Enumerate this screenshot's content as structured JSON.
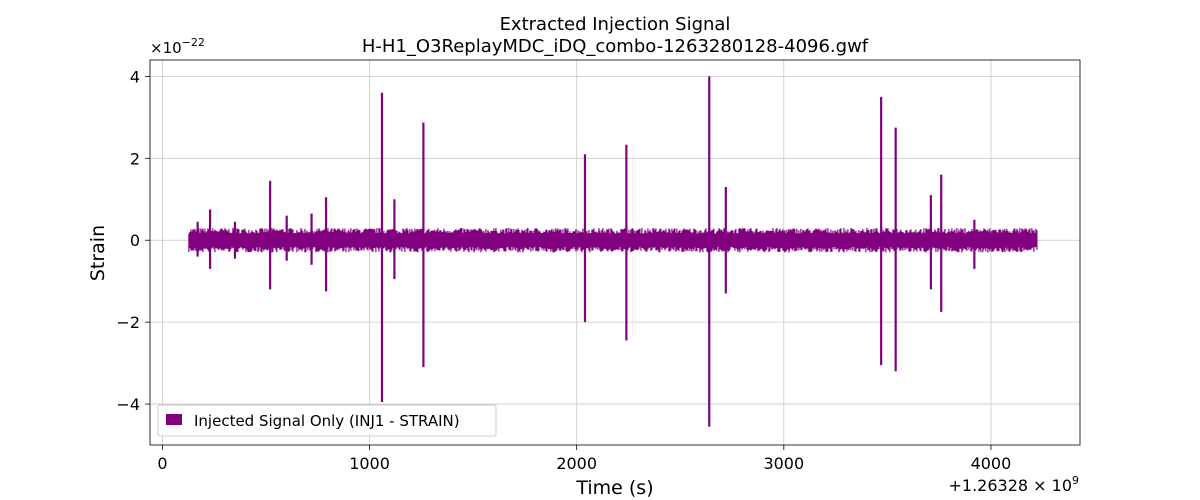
{
  "chart_data": {
    "type": "line",
    "title": "Extracted Injection Signal",
    "subtitle": "H-H1_O3ReplayMDC_iDQ_combo-1263280128-4096.gwf",
    "xlabel": "Time (s)",
    "ylabel": "Strain",
    "x_offset_label": "+1.26328",
    "x_offset_exp_label": "9",
    "y_scale_base": "10",
    "y_scale_exp_label": "−22",
    "xlim": [
      -60,
      4430
    ],
    "ylim": [
      -5.0,
      4.4
    ],
    "x_ticks": [
      0,
      1000,
      2000,
      3000,
      4000
    ],
    "x_tick_labels": [
      "0",
      "1000",
      "2000",
      "3000",
      "4000"
    ],
    "y_ticks": [
      -4,
      -2,
      0,
      2,
      4
    ],
    "y_tick_labels": [
      "−4",
      "−2",
      "0",
      "2",
      "4"
    ],
    "grid": true,
    "legend_position": "lower-left",
    "series": [
      {
        "name": "Injected Signal Only (INJ1 - STRAIN)",
        "color": "#800080",
        "x_range": [
          128,
          4224
        ],
        "baseline_amplitude": [
          -0.3,
          0.3
        ],
        "spikes": [
          {
            "x": 170,
            "y_max": 0.45,
            "y_min": -0.4
          },
          {
            "x": 230,
            "y_max": 0.75,
            "y_min": -0.7
          },
          {
            "x": 350,
            "y_max": 0.45,
            "y_min": -0.45
          },
          {
            "x": 520,
            "y_max": 1.45,
            "y_min": -1.2
          },
          {
            "x": 600,
            "y_max": 0.6,
            "y_min": -0.5
          },
          {
            "x": 720,
            "y_max": 0.65,
            "y_min": -0.6
          },
          {
            "x": 790,
            "y_max": 1.05,
            "y_min": -1.25
          },
          {
            "x": 1060,
            "y_max": 3.6,
            "y_min": -3.95
          },
          {
            "x": 1120,
            "y_max": 1.0,
            "y_min": -0.95
          },
          {
            "x": 1260,
            "y_max": 2.87,
            "y_min": -3.1
          },
          {
            "x": 2040,
            "y_max": 2.1,
            "y_min": -2.0
          },
          {
            "x": 2240,
            "y_max": 2.33,
            "y_min": -2.45
          },
          {
            "x": 2640,
            "y_max": 4.0,
            "y_min": -4.55
          },
          {
            "x": 2720,
            "y_max": 1.3,
            "y_min": -1.3
          },
          {
            "x": 3470,
            "y_max": 3.5,
            "y_min": -3.05
          },
          {
            "x": 3540,
            "y_max": 2.75,
            "y_min": -3.2
          },
          {
            "x": 3710,
            "y_max": 1.1,
            "y_min": -1.2
          },
          {
            "x": 3760,
            "y_max": 1.6,
            "y_min": -1.75
          },
          {
            "x": 3920,
            "y_max": 0.5,
            "y_min": -0.7
          }
        ]
      }
    ]
  }
}
